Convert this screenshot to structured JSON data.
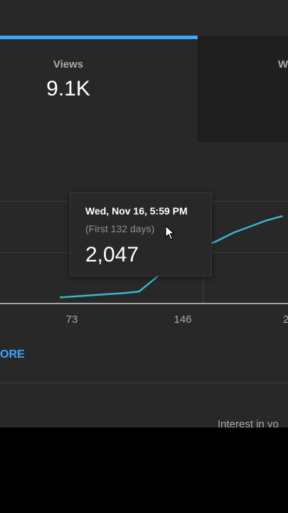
{
  "metrics": {
    "views": {
      "label": "Views",
      "value": "9.1K"
    },
    "next": {
      "label": "W"
    }
  },
  "chart_data": {
    "type": "line",
    "x_ticks": [
      "73",
      "146",
      "2"
    ],
    "series": [
      {
        "x": [
          0,
          20,
          40,
          60,
          73,
          85,
          100,
          115,
          132,
          146,
          160,
          175,
          190,
          205
        ],
        "values": [
          1880,
          1885,
          1890,
          1895,
          1900,
          1935,
          1980,
          2015,
          2047,
          2070,
          2095,
          2115,
          2135,
          2150
        ]
      }
    ],
    "highlight": {
      "x": 132,
      "value": 2047
    },
    "xlim": [
      -55,
      210
    ],
    "ylim": [
      1860,
      2200
    ],
    "colors": {
      "line": "#3cb6c6",
      "axis": "#cccccc"
    }
  },
  "tooltip": {
    "date": "Wed, Nov 16, 5:59 PM",
    "period": "(First 132 days)",
    "value": "2,047"
  },
  "see_more": {
    "label": "ORE"
  },
  "interest": {
    "label": "Interest in yo"
  }
}
